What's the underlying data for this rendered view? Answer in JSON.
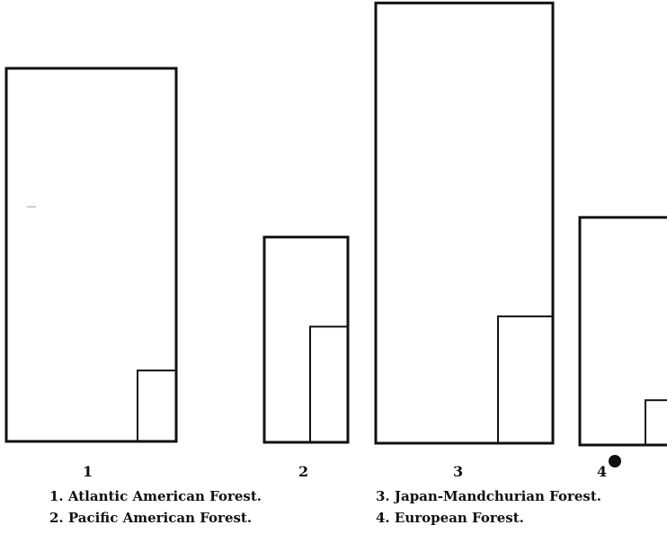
{
  "figure": {
    "panels": [
      {
        "number": "1",
        "outer_value": 1.0,
        "inner_value": 0.19
      },
      {
        "number": "2",
        "outer_value": 0.55,
        "inner_value": 0.31
      },
      {
        "number": "3",
        "outer_value": 1.18,
        "inner_value": 0.34
      },
      {
        "number": "4",
        "outer_value": 0.61,
        "inner_value": 0.12
      }
    ],
    "legend": [
      "1.  Atlantic American Forest.",
      "2.  Pacific American Forest.",
      "3.  Japan-Mandchurian Forest.",
      "4.  European Forest."
    ],
    "line_color": "#111111"
  }
}
